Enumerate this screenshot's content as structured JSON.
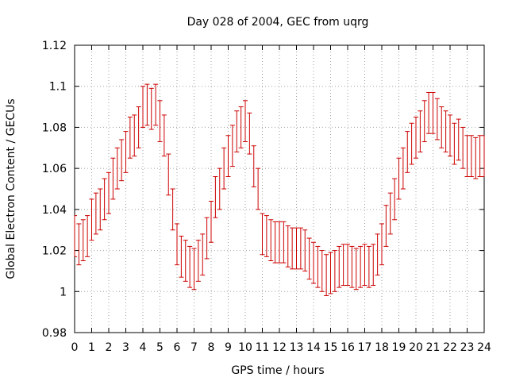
{
  "chart_data": {
    "type": "scatter",
    "title": "Day 028 of 2004, GEC from uqrg",
    "xlabel": "GPS time / hours",
    "ylabel": "Global Electron Content / GECUs",
    "xlim": [
      0,
      24
    ],
    "ylim": [
      0.98,
      1.12
    ],
    "grid": true,
    "x_ticks": [
      "0",
      "1",
      "2",
      "3",
      "4",
      "5",
      "6",
      "7",
      "8",
      "9",
      "10",
      "11",
      "12",
      "13",
      "14",
      "15",
      "16",
      "17",
      "18",
      "19",
      "20",
      "21",
      "22",
      "23",
      "24"
    ],
    "y_ticks": [
      "0.98",
      "1",
      "1.02",
      "1.04",
      "1.06",
      "1.08",
      "1.1",
      "1.12"
    ],
    "series": [
      {
        "name": "GEC",
        "color": "#cc0000",
        "error": 0.01,
        "x": [
          0.0,
          0.25,
          0.5,
          0.75,
          1.0,
          1.25,
          1.5,
          1.75,
          2.0,
          2.25,
          2.5,
          2.75,
          3.0,
          3.25,
          3.5,
          3.75,
          4.0,
          4.25,
          4.5,
          4.75,
          5.0,
          5.25,
          5.5,
          5.75,
          6.0,
          6.25,
          6.5,
          6.75,
          7.0,
          7.25,
          7.5,
          7.75,
          8.0,
          8.25,
          8.5,
          8.75,
          9.0,
          9.25,
          9.5,
          9.75,
          10.0,
          10.25,
          10.5,
          10.75,
          11.0,
          11.25,
          11.5,
          11.75,
          12.0,
          12.25,
          12.5,
          12.75,
          13.0,
          13.25,
          13.5,
          13.75,
          14.0,
          14.25,
          14.5,
          14.75,
          15.0,
          15.25,
          15.5,
          15.75,
          16.0,
          16.25,
          16.5,
          16.75,
          17.0,
          17.25,
          17.5,
          17.75,
          18.0,
          18.25,
          18.5,
          18.75,
          19.0,
          19.25,
          19.5,
          19.75,
          20.0,
          20.25,
          20.5,
          20.75,
          21.0,
          21.25,
          21.5,
          21.75,
          22.0,
          22.25,
          22.5,
          22.75,
          23.0,
          23.25,
          23.5,
          23.75,
          24.0
        ],
        "y": [
          1.027,
          1.023,
          1.025,
          1.027,
          1.035,
          1.038,
          1.04,
          1.045,
          1.048,
          1.055,
          1.06,
          1.064,
          1.068,
          1.075,
          1.076,
          1.08,
          1.09,
          1.091,
          1.089,
          1.091,
          1.083,
          1.076,
          1.057,
          1.04,
          1.023,
          1.017,
          1.015,
          1.012,
          1.011,
          1.015,
          1.018,
          1.026,
          1.034,
          1.046,
          1.05,
          1.06,
          1.066,
          1.071,
          1.078,
          1.08,
          1.083,
          1.077,
          1.061,
          1.05,
          1.028,
          1.027,
          1.025,
          1.024,
          1.024,
          1.024,
          1.022,
          1.021,
          1.021,
          1.021,
          1.02,
          1.016,
          1.014,
          1.012,
          1.01,
          1.008,
          1.009,
          1.01,
          1.012,
          1.013,
          1.013,
          1.012,
          1.011,
          1.012,
          1.013,
          1.012,
          1.013,
          1.018,
          1.023,
          1.032,
          1.038,
          1.045,
          1.055,
          1.06,
          1.068,
          1.072,
          1.075,
          1.078,
          1.083,
          1.087,
          1.087,
          1.084,
          1.08,
          1.078,
          1.076,
          1.072,
          1.074,
          1.07,
          1.066,
          1.066,
          1.065,
          1.066,
          1.066
        ]
      }
    ]
  }
}
